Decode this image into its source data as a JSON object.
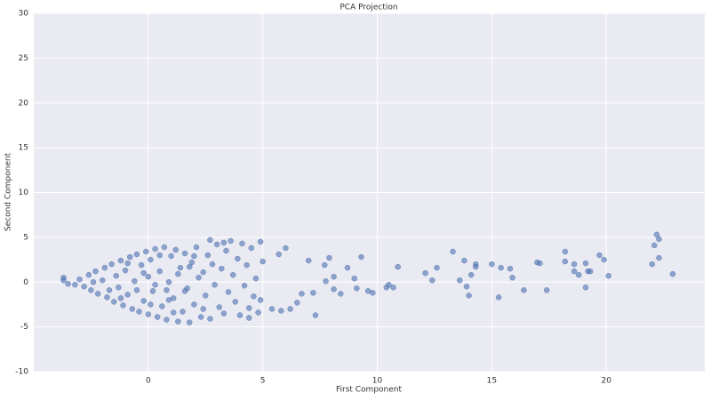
{
  "chart_data": {
    "type": "scatter",
    "title": "PCA Projection",
    "x_label": "First Component",
    "y_label": "Second Component",
    "color": "#4c72b0",
    "xlim": [
      -5,
      24.3
    ],
    "ylim": [
      -10,
      30
    ],
    "xticks": [
      0,
      5,
      10,
      15,
      20
    ],
    "yticks": [
      -10,
      -5,
      0,
      5,
      10,
      15,
      20,
      25,
      30
    ],
    "grid": true,
    "x": [
      22.2,
      22.3,
      22.1,
      22.3,
      22.0,
      22.9,
      20.1,
      19.7,
      19.9,
      19.1,
      19.2,
      19.3,
      19.1,
      18.6,
      18.6,
      18.8,
      18.2,
      18.2,
      17.4,
      16.98,
      17.1,
      16.4,
      15.9,
      15.8,
      15.4,
      15.3,
      15.0,
      14.3,
      14.3,
      14.1,
      14.0,
      13.9,
      13.8,
      13.6,
      13.3,
      12.6,
      12.4,
      12.1,
      10.9,
      10.7,
      10.5,
      10.4,
      9.8,
      9.6,
      9.1,
      9.3,
      9.0,
      8.7,
      8.4,
      8.1,
      8.1,
      7.75,
      7.7,
      7.9,
      7.3,
      7.2,
      7.0,
      6.7,
      6.5,
      6.2,
      6.0,
      5.7,
      5.8,
      5.4,
      5.0,
      4.8,
      -3.7,
      -3.7,
      -3.5,
      -3.2,
      -3.0,
      -2.8,
      -2.6,
      -2.5,
      -2.3,
      -2.2,
      -2.0,
      -1.9,
      -1.8,
      -1.6,
      -1.5,
      -1.4,
      -1.3,
      -1.2,
      -1.1,
      -1.0,
      -0.9,
      -0.8,
      -0.7,
      -0.6,
      -0.5,
      -0.4,
      -0.3,
      -0.2,
      -0.1,
      0.0,
      0.0,
      0.1,
      0.2,
      0.3,
      0.4,
      0.5,
      0.6,
      0.7,
      0.8,
      0.9,
      1.0,
      1.1,
      1.2,
      1.3,
      1.4,
      1.5,
      1.6,
      1.7,
      1.8,
      1.9,
      2.0,
      2.1,
      2.2,
      2.3,
      2.4,
      2.5,
      2.6,
      2.7,
      2.8,
      2.9,
      3.0,
      3.1,
      3.2,
      3.3,
      3.4,
      3.5,
      3.6,
      3.7,
      3.8,
      3.9,
      4.0,
      4.1,
      4.2,
      4.3,
      4.4,
      4.5,
      4.6,
      4.7,
      4.9,
      4.9,
      2.7,
      3.3,
      4.4,
      1.3,
      0.3,
      -0.5,
      1.8,
      0.9,
      -1.7,
      -0.9,
      0.5,
      1.1,
      2.0,
      1.6,
      -0.2,
      0.8,
      2.4,
      -2.4,
      -1.2,
      0.1
    ],
    "y": [
      5.3,
      4.8,
      4.1,
      2.7,
      2.0,
      0.9,
      0.7,
      3.0,
      2.5,
      2.1,
      1.2,
      1.2,
      -0.6,
      2.0,
      1.2,
      0.8,
      3.4,
      2.3,
      -0.9,
      2.2,
      2.1,
      -0.9,
      0.5,
      1.5,
      1.6,
      -1.7,
      2.0,
      2.0,
      1.7,
      0.8,
      -1.5,
      -0.5,
      2.4,
      0.2,
      3.4,
      1.6,
      0.2,
      1.0,
      1.7,
      -0.6,
      -0.3,
      -0.6,
      -1.2,
      -1.0,
      -0.7,
      2.8,
      0.4,
      1.6,
      -1.3,
      -0.8,
      0.6,
      0.1,
      1.9,
      2.7,
      -3.7,
      -1.2,
      2.4,
      -1.3,
      -2.3,
      -3.0,
      3.8,
      3.1,
      -3.2,
      -3.0,
      2.3,
      -3.4,
      0.5,
      0.2,
      -0.2,
      -0.3,
      0.3,
      -0.5,
      0.8,
      -0.9,
      1.2,
      -1.3,
      0.2,
      1.6,
      -1.7,
      2.0,
      -2.2,
      0.7,
      -0.6,
      2.4,
      -2.6,
      1.3,
      -1.4,
      2.8,
      -3.0,
      0.1,
      3.1,
      -3.3,
      1.9,
      -2.1,
      3.4,
      -3.6,
      0.6,
      2.5,
      -1.0,
      3.7,
      -3.9,
      1.2,
      -2.7,
      3.9,
      -4.2,
      0.0,
      2.9,
      -1.8,
      3.6,
      -4.4,
      1.6,
      -3.3,
      3.2,
      -0.7,
      -4.5,
      2.2,
      -2.5,
      3.9,
      0.5,
      -3.9,
      1.1,
      -1.5,
      3.0,
      -4.1,
      2.0,
      -0.3,
      4.2,
      -2.8,
      1.5,
      -3.5,
      3.5,
      -1.1,
      4.6,
      0.8,
      -2.2,
      2.6,
      -3.7,
      4.3,
      -0.4,
      1.9,
      -2.9,
      3.8,
      -1.6,
      0.4,
      4.5,
      -2.0,
      4.7,
      4.4,
      -4.0,
      0.9,
      -0.3,
      -0.9,
      1.7,
      -2.0,
      -0.9,
      2.1,
      3.0,
      -3.4,
      2.9,
      -1.0,
      1.0,
      -0.9,
      -3.0,
      0.0,
      -1.8,
      -2.5
    ]
  }
}
